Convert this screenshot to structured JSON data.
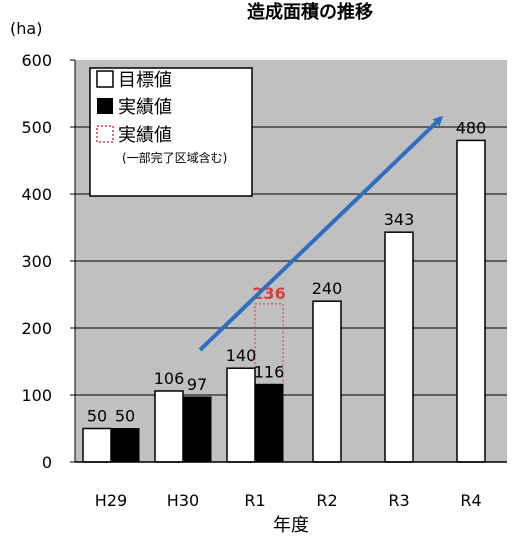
{
  "chart_data": {
    "type": "bar",
    "title": "造成面積の推移",
    "unit_label": "(ha)",
    "xlabel": "年度",
    "ylabel": "",
    "ylim": [
      0,
      600
    ],
    "yticks": [
      0,
      100,
      200,
      300,
      400,
      500,
      600
    ],
    "grid": true,
    "legend_position": "top-left",
    "categories": [
      "H29",
      "H30",
      "R1",
      "R2",
      "R3",
      "R4"
    ],
    "series": [
      {
        "name": "目標値",
        "color": "#ffffff",
        "values": [
          50,
          106,
          140,
          240,
          343,
          480
        ]
      },
      {
        "name": "実績値",
        "color": "#000000",
        "values": [
          50,
          97,
          116,
          null,
          null,
          null
        ]
      },
      {
        "name": "実績値",
        "note": "(一部完了区域含む)",
        "color": "#e03a3a",
        "style": "dotted-outline",
        "values": [
          null,
          null,
          236,
          null,
          null,
          null
        ]
      }
    ],
    "trend_arrow_color": "#2f6fc0",
    "plot_background": "#c0c0c0"
  }
}
